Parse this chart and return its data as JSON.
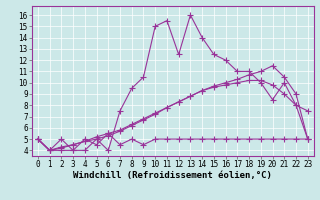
{
  "background_color": "#cce8e8",
  "line_color": "#993399",
  "marker": "+",
  "markersize": 4,
  "linewidth": 0.8,
  "xlabel": "Windchill (Refroidissement éolien,°C)",
  "xlabel_fontsize": 6.5,
  "xlim": [
    -0.5,
    23.5
  ],
  "ylim": [
    3.5,
    16.8
  ],
  "xticks": [
    0,
    1,
    2,
    3,
    4,
    5,
    6,
    7,
    8,
    9,
    10,
    11,
    12,
    13,
    14,
    15,
    16,
    17,
    18,
    19,
    20,
    21,
    22,
    23
  ],
  "yticks": [
    4,
    5,
    6,
    7,
    8,
    9,
    10,
    11,
    12,
    13,
    14,
    15,
    16
  ],
  "tick_fontsize": 5.5,
  "series1": [
    5.0,
    4.0,
    4.0,
    4.0,
    4.0,
    5.0,
    4.0,
    7.5,
    9.5,
    10.5,
    15.0,
    15.5,
    12.5,
    16.0,
    14.0,
    12.5,
    12.0,
    11.0,
    11.0,
    10.0,
    8.5,
    10.0,
    8.0,
    7.5
  ],
  "series2": [
    5.0,
    4.0,
    5.0,
    4.0,
    5.0,
    4.5,
    5.5,
    4.5,
    5.0,
    4.5,
    5.0,
    5.0,
    5.0,
    5.0,
    5.0,
    5.0,
    5.0,
    5.0,
    5.0,
    5.0,
    5.0,
    5.0,
    5.0,
    5.0
  ],
  "series3": [
    5.0,
    4.0,
    4.3,
    4.5,
    4.8,
    5.2,
    5.5,
    5.8,
    6.3,
    6.8,
    7.3,
    7.8,
    8.3,
    8.8,
    9.3,
    9.6,
    9.8,
    10.0,
    10.2,
    10.2,
    9.8,
    9.0,
    8.0,
    5.0
  ],
  "series4": [
    5.0,
    4.0,
    4.2,
    4.5,
    4.8,
    5.0,
    5.3,
    5.7,
    6.2,
    6.7,
    7.2,
    7.8,
    8.3,
    8.8,
    9.3,
    9.7,
    10.0,
    10.3,
    10.7,
    11.0,
    11.5,
    10.5,
    9.0,
    5.0
  ]
}
